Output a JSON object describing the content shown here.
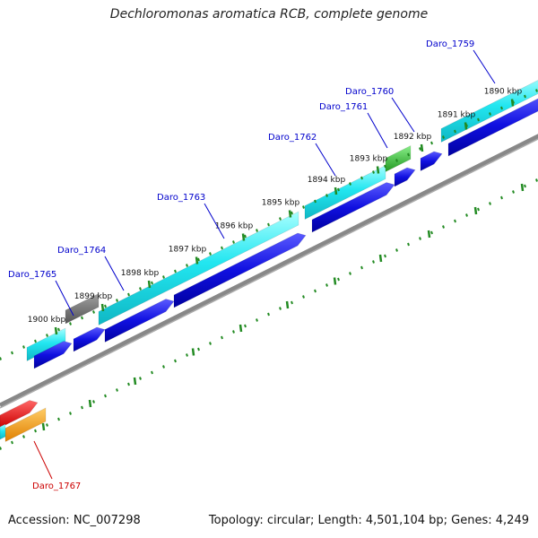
{
  "title": "Dechloromonas aromatica RCB, complete genome",
  "accession": "Accession: NC_007298",
  "summary": "Topology: circular; Length: 4,501,104 bp; Genes: 4,249",
  "ticks": [
    {
      "label": "1890 kbp"
    },
    {
      "label": "1891 kbp"
    },
    {
      "label": "1892 kbp"
    },
    {
      "label": "1893 kbp"
    },
    {
      "label": "1894 kbp"
    },
    {
      "label": "1895 kbp"
    },
    {
      "label": "1896 kbp"
    },
    {
      "label": "1897 kbp"
    },
    {
      "label": "1898 kbp"
    },
    {
      "label": "1899 kbp"
    },
    {
      "label": "1900 kbp"
    }
  ],
  "gene_labels": [
    {
      "label": "Daro_1759",
      "color": "#0000cc"
    },
    {
      "label": "Daro_1760",
      "color": "#0000cc"
    },
    {
      "label": "Daro_1761",
      "color": "#0000cc"
    },
    {
      "label": "Daro_1762",
      "color": "#0000cc"
    },
    {
      "label": "Daro_1763",
      "color": "#0000cc"
    },
    {
      "label": "Daro_1764",
      "color": "#0000cc"
    },
    {
      "label": "Daro_1765",
      "color": "#0000cc"
    },
    {
      "label": "Daro_1767",
      "color": "#cc0000"
    }
  ],
  "colors": {
    "cyan": "#22e6f0",
    "blue": "#1010e0",
    "gray": "#707070",
    "green": "#33bb33",
    "red": "#ee1111",
    "orange": "#ff9900",
    "tick": "#228b22",
    "backbone": "#888888"
  }
}
